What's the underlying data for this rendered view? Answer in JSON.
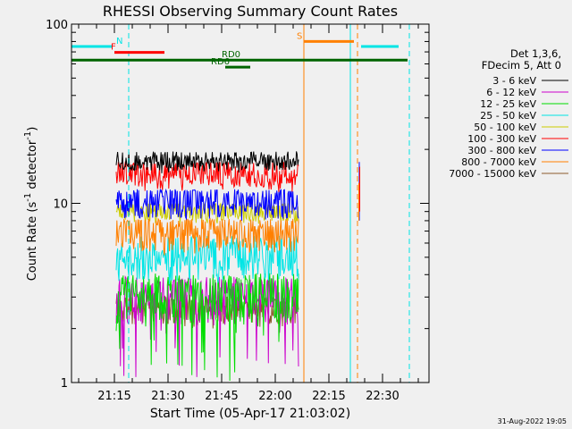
{
  "chart_data": {
    "type": "line",
    "title": "RHESSI Observing Summary Count Rates",
    "xlabel": "Start Time (05-Apr-17 21:03:02)",
    "ylabel_prefix": "Count Rate (s",
    "ylabel_sup": "-1",
    "ylabel_suffix": " detector",
    "ylabel_sup2": "-1",
    "ylabel_close": ")",
    "y_scale": "log",
    "ylim": [
      1,
      100
    ],
    "y_ticks": [
      "1",
      "10",
      "100"
    ],
    "xlim_minutes": [
      0,
      100
    ],
    "x_ticks": [
      {
        "label": "21:15",
        "min": 12
      },
      {
        "label": "21:30",
        "min": 27
      },
      {
        "label": "21:45",
        "min": 42
      },
      {
        "label": "22:00",
        "min": 57
      },
      {
        "label": "22:15",
        "min": 72
      },
      {
        "label": "22:30",
        "min": 87
      }
    ],
    "legend_header": [
      "Det 1,3,6,",
      "FDecim 5, Att 0"
    ],
    "legend_placement": "right",
    "series": [
      {
        "name": "3 - 6 keV",
        "color": "#000000",
        "base": 17.0,
        "amp": 1.8,
        "floor": 14.5,
        "top": 19.5
      },
      {
        "name": "6 - 12 keV",
        "color": "#cc00cc",
        "base": 3.0,
        "amp": 0.9,
        "floor": 1.0,
        "top": 3.8
      },
      {
        "name": "12 - 25 keV",
        "color": "#00dd00",
        "base": 3.1,
        "amp": 1.0,
        "floor": 1.0,
        "top": 4.0
      },
      {
        "name": "25 - 50 keV",
        "color": "#00e5e5",
        "base": 5.0,
        "amp": 1.3,
        "floor": 3.5,
        "top": 6.6
      },
      {
        "name": "50 - 100 keV",
        "color": "#cccc00",
        "base": 9.0,
        "amp": 1.0,
        "floor": 7.5,
        "top": 10.0
      },
      {
        "name": "100 - 300 keV",
        "color": "#ff0000",
        "base": 14.5,
        "amp": 2.2,
        "floor": 11.5,
        "top": 17.0
      },
      {
        "name": "300 - 800 keV",
        "color": "#0000ff",
        "base": 10.0,
        "amp": 1.8,
        "floor": 8.0,
        "top": 12.0
      },
      {
        "name": "800 - 7000 keV",
        "color": "#ff8000",
        "base": 6.8,
        "amp": 1.5,
        "floor": 5.0,
        "top": 8.2
      },
      {
        "name": "7000 - 15000 keV",
        "color": "#8b5a2b",
        "base": 2.6,
        "amp": 0.5,
        "floor": 2.0,
        "top": 3.0
      }
    ],
    "data_window_minutes": [
      12.5,
      63.5
    ],
    "spike": {
      "min": 80.5,
      "blue_range": [
        8,
        17
      ],
      "red_range": [
        9,
        16
      ],
      "orange_range": [
        8,
        13
      ]
    },
    "flag_bars": [
      {
        "label": "N",
        "color": "#00e5e5",
        "y": 75,
        "spans": [
          [
            0,
            11.5
          ],
          [
            81,
            91.5
          ]
        ],
        "label_min": 12.5
      },
      {
        "label": "F",
        "color": "#ff0000",
        "y": 69.5,
        "spans": [
          [
            12,
            26
          ]
        ],
        "label_min": 11
      },
      {
        "label": "S",
        "color": "#ff8000",
        "y": 80,
        "spans": [
          [
            65,
            79
          ]
        ],
        "label_min": 63
      },
      {
        "label": "RD0",
        "color": "#006400",
        "y": 63,
        "spans": [
          [
            0,
            94
          ]
        ],
        "label_min": 42
      },
      {
        "label": "RD6",
        "color": "#006400",
        "y": 57.5,
        "spans": [
          [
            43,
            50
          ]
        ],
        "label_min": 39
      }
    ],
    "vlines": [
      {
        "min": 0,
        "color": "#00e5e5",
        "style": "solid"
      },
      {
        "min": 16,
        "color": "#00e5e5",
        "style": "dashed"
      },
      {
        "min": 65,
        "color": "#ff8000",
        "style": "solid"
      },
      {
        "min": 78,
        "color": "#00e5e5",
        "style": "solid"
      },
      {
        "min": 80,
        "color": "#ff8000",
        "style": "dashed"
      },
      {
        "min": 94.5,
        "color": "#00e5e5",
        "style": "dashed"
      }
    ],
    "timestamp": "31-Aug-2022 19:05"
  }
}
